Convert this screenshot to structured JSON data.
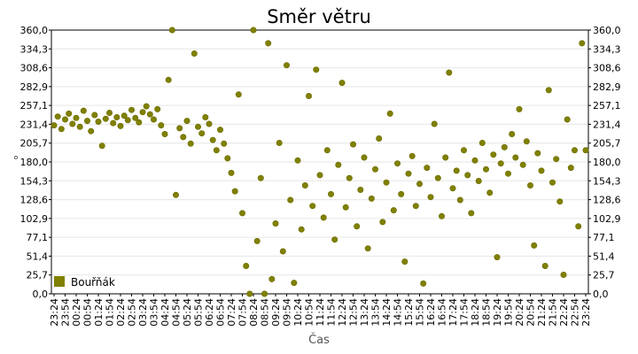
{
  "chart_data": {
    "type": "scatter",
    "title": "Směr větru",
    "xlabel": "Čas",
    "ylabel": "°",
    "ylim": [
      0,
      360
    ],
    "yticks": [
      "0,0",
      "25,7",
      "51,4",
      "77,1",
      "102,9",
      "128,6",
      "154,3",
      "180,0",
      "205,7",
      "231,4",
      "257,1",
      "282,9",
      "308,6",
      "334,3",
      "360,0"
    ],
    "xticks": [
      "23:24",
      "23:54",
      "00:24",
      "00:54",
      "01:24",
      "01:54",
      "02:24",
      "02:54",
      "03:24",
      "03:54",
      "04:24",
      "04:54",
      "05:24",
      "05:54",
      "06:24",
      "06:54",
      "07:24",
      "07:54",
      "08:24",
      "08:54",
      "09:24",
      "09:54",
      "10:24",
      "10:54",
      "11:24",
      "11:54",
      "12:24",
      "12:54",
      "13:24",
      "13:54",
      "14:24",
      "14:54",
      "15:24",
      "15:54",
      "16:24",
      "16:54",
      "17:24",
      "17:54",
      "18:24",
      "18:54",
      "19:24",
      "19:54",
      "20:24",
      "20:54",
      "21:24",
      "21:54",
      "22:24",
      "22:54",
      "23:24"
    ],
    "grid": true,
    "legend_position": "bottom-left",
    "series": [
      {
        "name": "Bouřňák",
        "color": "#808000",
        "points": [
          {
            "x": "23:24",
            "y": 230
          },
          {
            "x": "23:34",
            "y": 242
          },
          {
            "x": "23:44",
            "y": 225
          },
          {
            "x": "23:54",
            "y": 238
          },
          {
            "x": "00:04",
            "y": 246
          },
          {
            "x": "00:14",
            "y": 232
          },
          {
            "x": "00:24",
            "y": 240
          },
          {
            "x": "00:34",
            "y": 228
          },
          {
            "x": "00:44",
            "y": 250
          },
          {
            "x": "00:54",
            "y": 236
          },
          {
            "x": "01:04",
            "y": 222
          },
          {
            "x": "01:14",
            "y": 244
          },
          {
            "x": "01:24",
            "y": 235
          },
          {
            "x": "01:34",
            "y": 202
          },
          {
            "x": "01:44",
            "y": 239
          },
          {
            "x": "01:54",
            "y": 247
          },
          {
            "x": "02:04",
            "y": 233
          },
          {
            "x": "02:14",
            "y": 241
          },
          {
            "x": "02:24",
            "y": 229
          },
          {
            "x": "02:34",
            "y": 243
          },
          {
            "x": "02:44",
            "y": 237
          },
          {
            "x": "02:54",
            "y": 251
          },
          {
            "x": "03:04",
            "y": 240
          },
          {
            "x": "03:14",
            "y": 234
          },
          {
            "x": "03:24",
            "y": 248
          },
          {
            "x": "03:34",
            "y": 256
          },
          {
            "x": "03:44",
            "y": 245
          },
          {
            "x": "03:54",
            "y": 238
          },
          {
            "x": "04:04",
            "y": 252
          },
          {
            "x": "04:14",
            "y": 230
          },
          {
            "x": "04:24",
            "y": 218
          },
          {
            "x": "04:34",
            "y": 292
          },
          {
            "x": "04:44",
            "y": 360
          },
          {
            "x": "04:54",
            "y": 135
          },
          {
            "x": "05:04",
            "y": 226
          },
          {
            "x": "05:14",
            "y": 214
          },
          {
            "x": "05:24",
            "y": 236
          },
          {
            "x": "05:34",
            "y": 205
          },
          {
            "x": "05:44",
            "y": 328
          },
          {
            "x": "05:54",
            "y": 228
          },
          {
            "x": "06:04",
            "y": 219
          },
          {
            "x": "06:14",
            "y": 241
          },
          {
            "x": "06:24",
            "y": 232
          },
          {
            "x": "06:34",
            "y": 210
          },
          {
            "x": "06:44",
            "y": 196
          },
          {
            "x": "06:54",
            "y": 224
          },
          {
            "x": "07:04",
            "y": 205
          },
          {
            "x": "07:14",
            "y": 185
          },
          {
            "x": "07:24",
            "y": 165
          },
          {
            "x": "07:34",
            "y": 140
          },
          {
            "x": "07:44",
            "y": 272
          },
          {
            "x": "07:54",
            "y": 110
          },
          {
            "x": "08:04",
            "y": 38
          },
          {
            "x": "08:14",
            "y": 0
          },
          {
            "x": "08:24",
            "y": 360
          },
          {
            "x": "08:34",
            "y": 72
          },
          {
            "x": "08:44",
            "y": 158
          },
          {
            "x": "08:54",
            "y": 0
          },
          {
            "x": "09:04",
            "y": 342
          },
          {
            "x": "09:14",
            "y": 20
          },
          {
            "x": "09:24",
            "y": 96
          },
          {
            "x": "09:34",
            "y": 206
          },
          {
            "x": "09:44",
            "y": 58
          },
          {
            "x": "09:54",
            "y": 312
          },
          {
            "x": "10:04",
            "y": 128
          },
          {
            "x": "10:14",
            "y": 15
          },
          {
            "x": "10:24",
            "y": 182
          },
          {
            "x": "10:34",
            "y": 88
          },
          {
            "x": "10:44",
            "y": 148
          },
          {
            "x": "10:54",
            "y": 270
          },
          {
            "x": "11:04",
            "y": 120
          },
          {
            "x": "11:14",
            "y": 306
          },
          {
            "x": "11:24",
            "y": 162
          },
          {
            "x": "11:34",
            "y": 104
          },
          {
            "x": "11:44",
            "y": 196
          },
          {
            "x": "11:54",
            "y": 136
          },
          {
            "x": "12:04",
            "y": 74
          },
          {
            "x": "12:14",
            "y": 176
          },
          {
            "x": "12:24",
            "y": 288
          },
          {
            "x": "12:34",
            "y": 118
          },
          {
            "x": "12:44",
            "y": 158
          },
          {
            "x": "12:54",
            "y": 204
          },
          {
            "x": "13:04",
            "y": 92
          },
          {
            "x": "13:14",
            "y": 142
          },
          {
            "x": "13:24",
            "y": 186
          },
          {
            "x": "13:34",
            "y": 62
          },
          {
            "x": "13:44",
            "y": 130
          },
          {
            "x": "13:54",
            "y": 170
          },
          {
            "x": "14:04",
            "y": 212
          },
          {
            "x": "14:14",
            "y": 98
          },
          {
            "x": "14:24",
            "y": 152
          },
          {
            "x": "14:34",
            "y": 246
          },
          {
            "x": "14:44",
            "y": 114
          },
          {
            "x": "14:54",
            "y": 178
          },
          {
            "x": "15:04",
            "y": 136
          },
          {
            "x": "15:14",
            "y": 44
          },
          {
            "x": "15:24",
            "y": 164
          },
          {
            "x": "15:34",
            "y": 188
          },
          {
            "x": "15:44",
            "y": 120
          },
          {
            "x": "15:54",
            "y": 150
          },
          {
            "x": "16:04",
            "y": 14
          },
          {
            "x": "16:14",
            "y": 172
          },
          {
            "x": "16:24",
            "y": 132
          },
          {
            "x": "16:34",
            "y": 232
          },
          {
            "x": "16:44",
            "y": 158
          },
          {
            "x": "16:54",
            "y": 106
          },
          {
            "x": "17:04",
            "y": 186
          },
          {
            "x": "17:14",
            "y": 302
          },
          {
            "x": "17:24",
            "y": 144
          },
          {
            "x": "17:34",
            "y": 168
          },
          {
            "x": "17:44",
            "y": 128
          },
          {
            "x": "17:54",
            "y": 196
          },
          {
            "x": "18:04",
            "y": 162
          },
          {
            "x": "18:14",
            "y": 110
          },
          {
            "x": "18:24",
            "y": 182
          },
          {
            "x": "18:34",
            "y": 154
          },
          {
            "x": "18:44",
            "y": 206
          },
          {
            "x": "18:54",
            "y": 170
          },
          {
            "x": "19:04",
            "y": 138
          },
          {
            "x": "19:14",
            "y": 190
          },
          {
            "x": "19:24",
            "y": 50
          },
          {
            "x": "19:34",
            "y": 178
          },
          {
            "x": "19:44",
            "y": 200
          },
          {
            "x": "19:54",
            "y": 164
          },
          {
            "x": "20:04",
            "y": 218
          },
          {
            "x": "20:14",
            "y": 186
          },
          {
            "x": "20:24",
            "y": 252
          },
          {
            "x": "20:34",
            "y": 176
          },
          {
            "x": "20:44",
            "y": 208
          },
          {
            "x": "20:54",
            "y": 148
          },
          {
            "x": "21:04",
            "y": 66
          },
          {
            "x": "21:14",
            "y": 192
          },
          {
            "x": "21:24",
            "y": 168
          },
          {
            "x": "21:34",
            "y": 38
          },
          {
            "x": "21:44",
            "y": 278
          },
          {
            "x": "21:54",
            "y": 152
          },
          {
            "x": "22:04",
            "y": 184
          },
          {
            "x": "22:14",
            "y": 126
          },
          {
            "x": "22:24",
            "y": 26
          },
          {
            "x": "22:34",
            "y": 238
          },
          {
            "x": "22:44",
            "y": 172
          },
          {
            "x": "22:54",
            "y": 196
          },
          {
            "x": "23:04",
            "y": 92
          },
          {
            "x": "23:14",
            "y": 342
          },
          {
            "x": "23:24",
            "y": 196
          }
        ]
      }
    ]
  }
}
